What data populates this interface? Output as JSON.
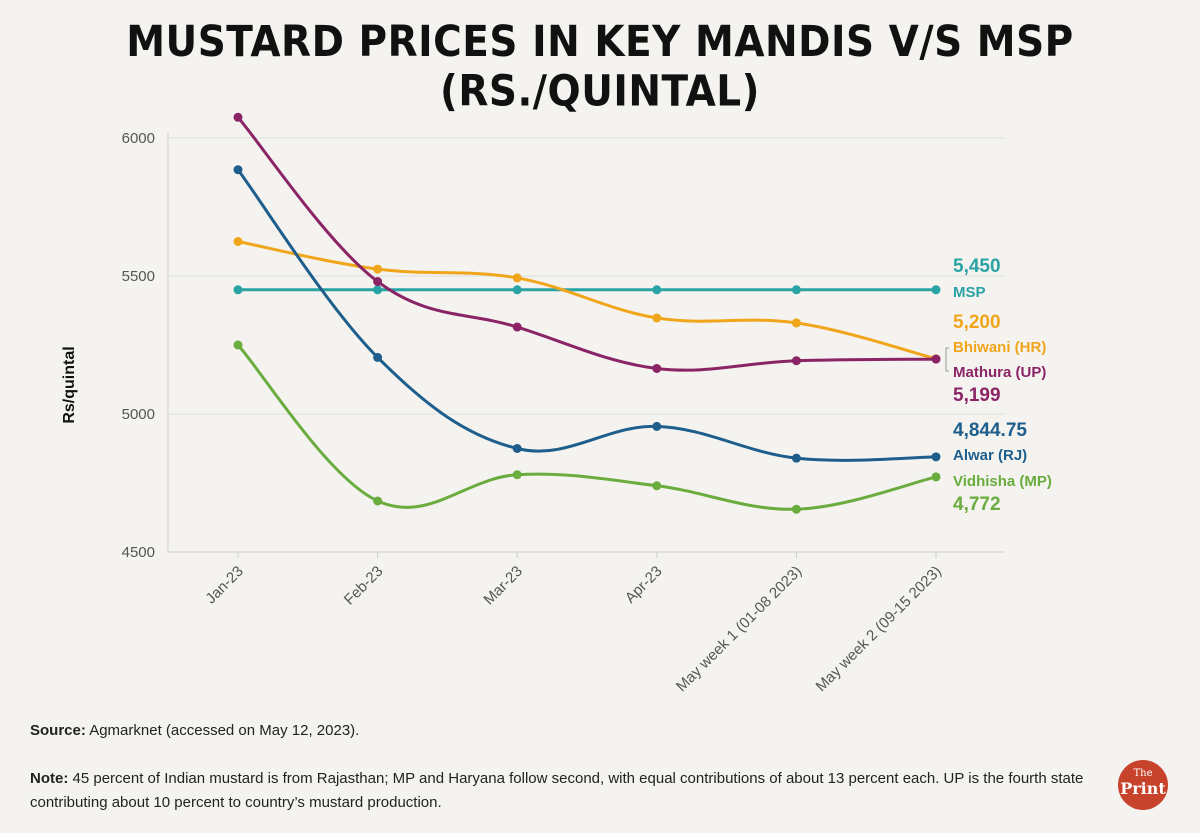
{
  "title": "MUSTARD PRICES IN KEY MANDIS V/S MSP (RS./QUINTAL)",
  "footer": {
    "source_label": "Source:",
    "source_text": "Agmarknet (accessed on May 12, 2023).",
    "note_label": "Note:",
    "note_text": "45 percent of Indian mustard is from Rajasthan; MP and Haryana follow second, with equal contributions of about 13 percent each. UP is the fourth state contributing about 10 percent to country’s mustard production."
  },
  "logo": {
    "the": "The",
    "print": "Print"
  },
  "chart_data": {
    "type": "line",
    "title": "MUSTARD PRICES IN KEY MANDIS V/S MSP (RS./QUINTAL)",
    "ylabel": "Rs/quintal",
    "xlabel": "",
    "ylim": [
      4500,
      6000
    ],
    "yticks": [
      4500,
      5000,
      5500,
      6000
    ],
    "grid": true,
    "categories": [
      "Jan-23",
      "Feb-23",
      "Mar-23",
      "Apr-23",
      "May week 1 (01-08 2023)",
      "May week 2 (09-15 2023)"
    ],
    "series": [
      {
        "name": "MSP",
        "color": "#2aa3a5",
        "values": [
          5450,
          5450,
          5450,
          5450,
          5450,
          5450
        ],
        "end_label": "5,450"
      },
      {
        "name": "Bhiwani (HR)",
        "color": "#f0a51a",
        "values": [
          5625,
          5525,
          5493,
          5348,
          5330,
          5200
        ],
        "end_label": "5,200"
      },
      {
        "name": "Mathura (UP)",
        "color": "#8b2467",
        "values": [
          6075,
          5480,
          5315,
          5165,
          5193,
          5199
        ],
        "end_label": "5,199"
      },
      {
        "name": "Alwar (RJ)",
        "color": "#1e5e8c",
        "values": [
          5885,
          5205,
          4875,
          4955,
          4840,
          4844.75
        ],
        "end_label": "4,844.75"
      },
      {
        "name": "Vidhisha (MP)",
        "color": "#6aac3e",
        "values": [
          5250,
          4685,
          4780,
          4740,
          4655,
          4772
        ],
        "end_label": "4,772"
      }
    ]
  }
}
